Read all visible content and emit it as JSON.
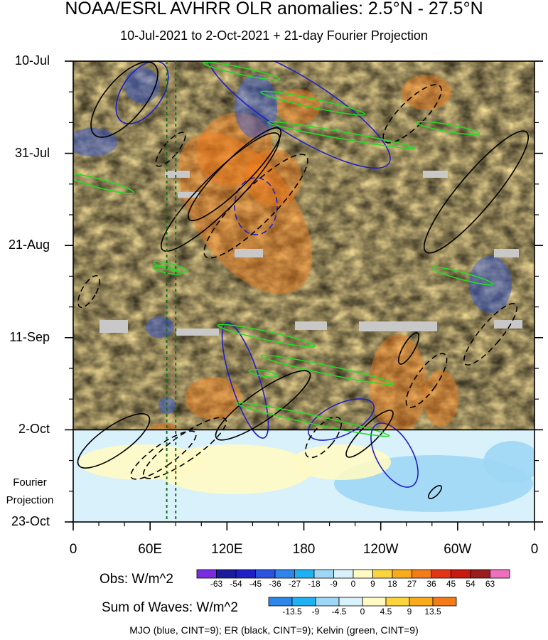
{
  "title": "NOAA/ESRL AVHRR OLR anomalies: 2.5°N - 27.5°N",
  "subtitle": "10-Jul-2021 to 2-Oct-2021 + 21-day Fourier Projection",
  "projection_label_line1": "Fourier",
  "projection_label_line2": "Projection",
  "colorbar_obs": {
    "title": "Obs: W/m^2",
    "ticks": [
      "-63",
      "-54",
      "-45",
      "-36",
      "-27",
      "-18",
      "-9",
      "0",
      "9",
      "18",
      "27",
      "36",
      "45",
      "54",
      "63"
    ],
    "colors": [
      "#7b2be0",
      "#1b1b9e",
      "#1f1fc8",
      "#2c52e0",
      "#2f86ea",
      "#20b1f2",
      "#9ed7f5",
      "#d9f1fa",
      "#fff9c4",
      "#fbd53e",
      "#f9ab1c",
      "#f37b18",
      "#e33516",
      "#c81a10",
      "#9a1c1c",
      "#ee6fbe"
    ]
  },
  "colorbar_waves": {
    "title": "Sum of Waves: W/m^2",
    "ticks": [
      "-13.5",
      "-9",
      "-4.5",
      "0",
      "4.5",
      "9",
      "13.5"
    ],
    "colors": [
      "#2f86ea",
      "#20b1f2",
      "#9ed7f5",
      "#d9f1fa",
      "#fff9c4",
      "#fbd53e",
      "#f9ab1c",
      "#f37b18"
    ]
  },
  "footer": "MJO (blue, CINT=9); ER (black, CINT=9); Kelvin (green, CINT=9)",
  "chart_data": {
    "type": "heatmap",
    "title": "NOAA/ESRL AVHRR OLR anomalies: 2.5°N - 27.5°N",
    "xlabel": "",
    "ylabel": "",
    "x_ticks": [
      "0",
      "60E",
      "120E",
      "180",
      "120W",
      "60W",
      "0"
    ],
    "x_tick_values": [
      0,
      60,
      120,
      180,
      240,
      300,
      360
    ],
    "xlim": [
      0,
      360
    ],
    "y_ticks": [
      "10-Jul",
      "31-Jul",
      "21-Aug",
      "11-Sep",
      "2-Oct",
      "23-Oct"
    ],
    "y_tick_dates": [
      "2021-07-10",
      "2021-07-31",
      "2021-08-21",
      "2021-09-11",
      "2021-10-02",
      "2021-10-23"
    ],
    "ylim": [
      "2021-07-10",
      "2021-10-23"
    ],
    "projection_start": "2021-10-02",
    "reference_longitudes": [
      73,
      80
    ],
    "overlays": [
      "MJO (blue, CINT=9)",
      "ER (black, CINT=9)",
      "Kelvin (green, CINT=9)"
    ]
  }
}
